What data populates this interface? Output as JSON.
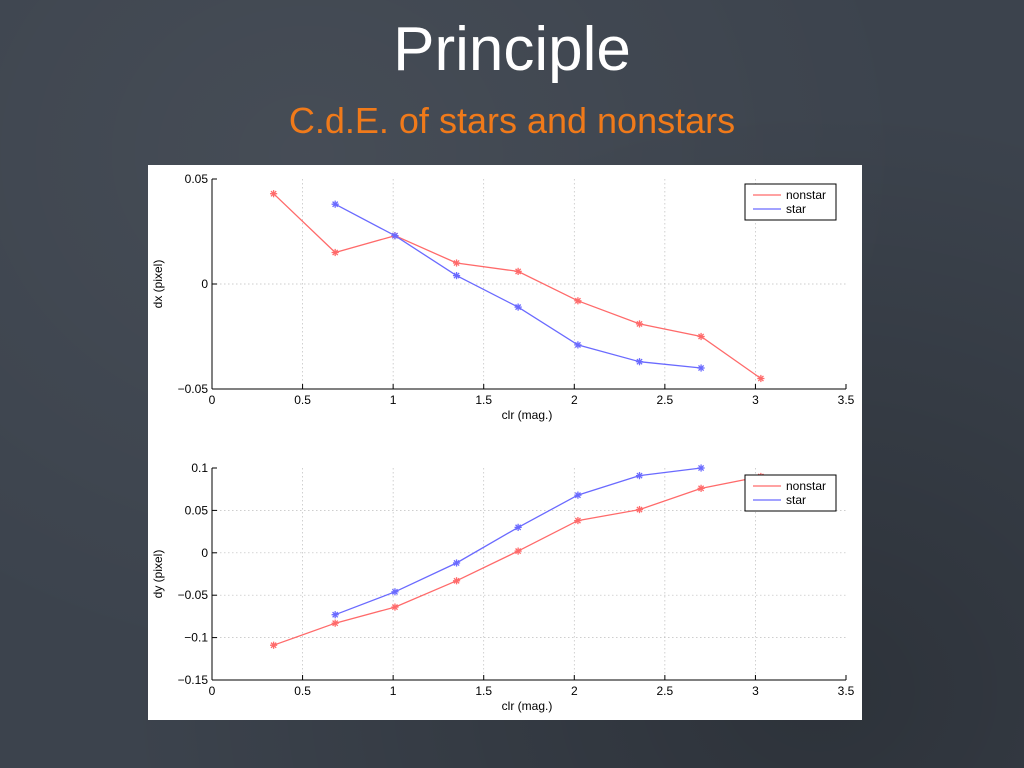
{
  "slide": {
    "title": "Principle",
    "subtitle": "C.d.E. of stars and nonstars",
    "title_color": "#ffffff",
    "subtitle_color": "#f07a1a",
    "background_color": "#3c434d"
  },
  "chart_data": [
    {
      "type": "line",
      "xlabel": "clr (mag.)",
      "ylabel": "dx (pixel)",
      "xlim": [
        0,
        3.5
      ],
      "ylim": [
        -0.05,
        0.05
      ],
      "xticks": [
        0,
        0.5,
        1,
        1.5,
        2,
        2.5,
        3,
        3.5
      ],
      "xtick_labels": [
        "0",
        "0.5",
        "1",
        "1.5",
        "2",
        "2.5",
        "3",
        "3.5"
      ],
      "yticks": [
        -0.05,
        0,
        0.05
      ],
      "ytick_labels": [
        "-0.05",
        "0",
        "0.05"
      ],
      "grid": true,
      "legend_position": "top-right",
      "series": [
        {
          "name": "nonstar",
          "color": "#ff6a6a",
          "marker": "asterisk",
          "x": [
            0.34,
            0.68,
            1.01,
            1.35,
            1.69,
            2.02,
            2.36,
            2.7,
            3.03
          ],
          "y": [
            0.043,
            0.015,
            0.023,
            0.01,
            0.006,
            -0.008,
            -0.019,
            -0.025,
            -0.045
          ]
        },
        {
          "name": "star",
          "color": "#6a6aff",
          "marker": "asterisk",
          "x": [
            0.68,
            1.01,
            1.35,
            1.69,
            2.02,
            2.36,
            2.7
          ],
          "y": [
            0.038,
            0.023,
            0.004,
            -0.011,
            -0.029,
            -0.037,
            -0.04
          ]
        }
      ]
    },
    {
      "type": "line",
      "xlabel": "clr (mag.)",
      "ylabel": "dy (pixel)",
      "xlim": [
        0,
        3.5
      ],
      "ylim": [
        -0.15,
        0.1
      ],
      "xticks": [
        0,
        0.5,
        1,
        1.5,
        2,
        2.5,
        3,
        3.5
      ],
      "xtick_labels": [
        "0",
        "0.5",
        "1",
        "1.5",
        "2",
        "2.5",
        "3",
        "3.5"
      ],
      "yticks": [
        -0.15,
        -0.1,
        -0.05,
        0,
        0.05,
        0.1
      ],
      "ytick_labels": [
        "-0.15",
        "-0.1",
        "-0.05",
        "0",
        "0.05",
        "0.1"
      ],
      "grid": true,
      "legend_position": "top-right",
      "series": [
        {
          "name": "nonstar",
          "color": "#ff6a6a",
          "marker": "asterisk",
          "x": [
            0.34,
            0.68,
            1.01,
            1.35,
            1.69,
            2.02,
            2.36,
            2.7,
            3.03
          ],
          "y": [
            -0.109,
            -0.083,
            -0.064,
            -0.033,
            0.002,
            0.038,
            0.051,
            0.076,
            0.09
          ]
        },
        {
          "name": "star",
          "color": "#6a6aff",
          "marker": "asterisk",
          "x": [
            0.68,
            1.01,
            1.35,
            1.69,
            2.02,
            2.36,
            2.7
          ],
          "y": [
            -0.073,
            -0.046,
            -0.012,
            0.03,
            0.068,
            0.091,
            0.1
          ]
        }
      ]
    }
  ]
}
